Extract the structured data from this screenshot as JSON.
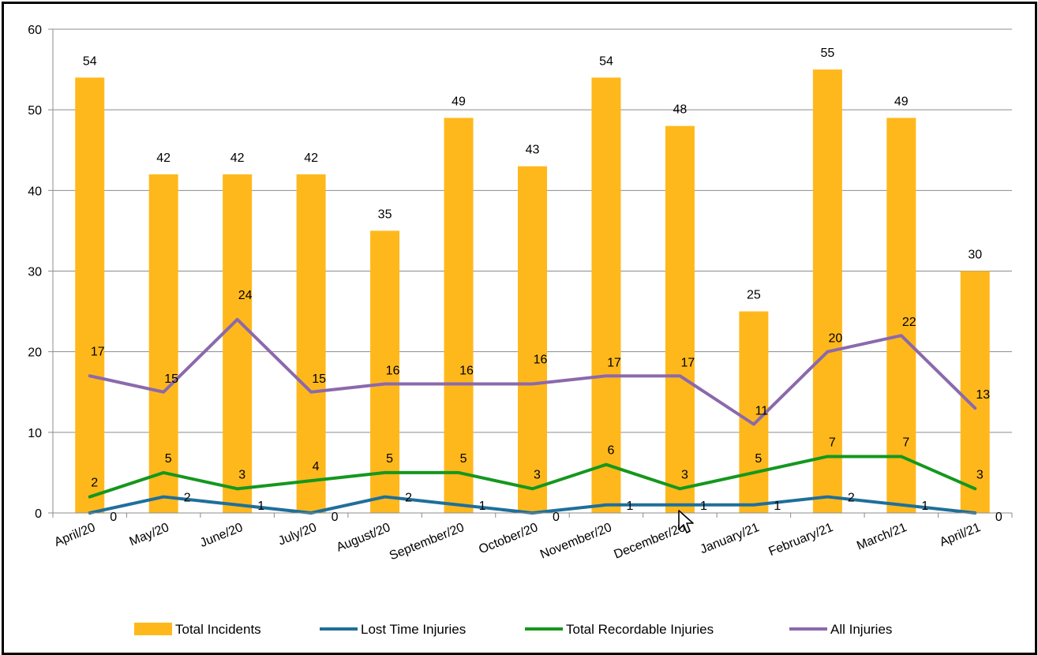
{
  "chart_data": {
    "type": "bar",
    "categories": [
      "April/20",
      "May/20",
      "June/20",
      "July/20",
      "August/20",
      "September/20",
      "October/20",
      "November/20",
      "December/20",
      "January/21",
      "February/21",
      "March/21",
      "April/21"
    ],
    "ylim": [
      0,
      60
    ],
    "yticks": [
      "0",
      "10",
      "20",
      "30",
      "40",
      "50",
      "60"
    ],
    "grid": true,
    "legend_position": "bottom",
    "series": [
      {
        "name": "Total Incidents",
        "type": "bar",
        "color": "#FFB81C",
        "values": [
          54,
          42,
          42,
          42,
          35,
          49,
          43,
          54,
          48,
          25,
          55,
          49,
          30
        ]
      },
      {
        "name": "Lost Time Injuries",
        "type": "line",
        "color": "#1F6F9A",
        "values": [
          0,
          2,
          1,
          0,
          2,
          1,
          0,
          1,
          1,
          1,
          2,
          1,
          0
        ]
      },
      {
        "name": "Total Recordable Injuries",
        "type": "line",
        "color": "#15971E",
        "values": [
          2,
          5,
          3,
          4,
          5,
          5,
          3,
          6,
          3,
          5,
          7,
          7,
          3
        ]
      },
      {
        "name": "All Injuries",
        "type": "line",
        "color": "#8B69AC",
        "values": [
          17,
          15,
          24,
          15,
          16,
          16,
          16,
          17,
          17,
          11,
          20,
          22,
          13
        ]
      }
    ]
  }
}
